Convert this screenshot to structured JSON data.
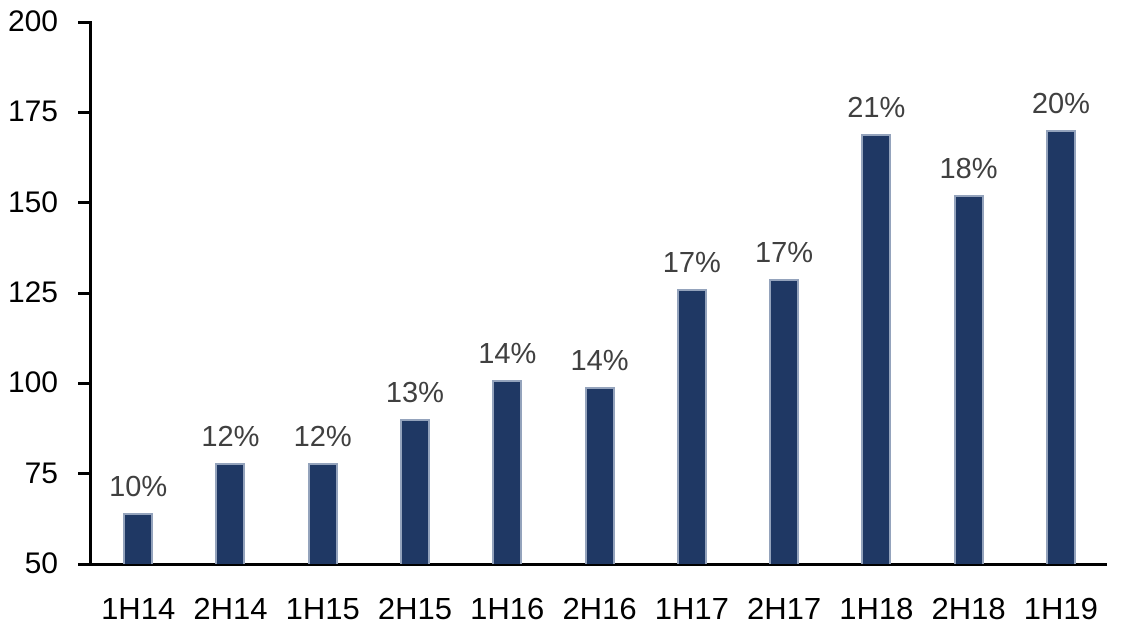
{
  "chart_data": {
    "type": "bar",
    "categories": [
      "1H14",
      "2H14",
      "1H15",
      "2H15",
      "1H16",
      "2H16",
      "1H17",
      "2H17",
      "1H18",
      "2H18",
      "1H19"
    ],
    "values": [
      64,
      78,
      78,
      90,
      101,
      99,
      126,
      129,
      169,
      152,
      170
    ],
    "bar_labels": [
      "10%",
      "12%",
      "12%",
      "13%",
      "14%",
      "14%",
      "17%",
      "17%",
      "21%",
      "18%",
      "20%"
    ],
    "title": "",
    "xlabel": "",
    "ylabel": "",
    "ylim": [
      50,
      200
    ],
    "yticks": [
      50,
      75,
      100,
      125,
      150,
      175,
      200
    ],
    "grid": false,
    "legend": "none",
    "colors": {
      "bar_fill": "#1F3864",
      "bar_border": "#94A3BC",
      "data_label": "#404040",
      "axis": "#000000",
      "background": "#FFFFFF"
    }
  }
}
